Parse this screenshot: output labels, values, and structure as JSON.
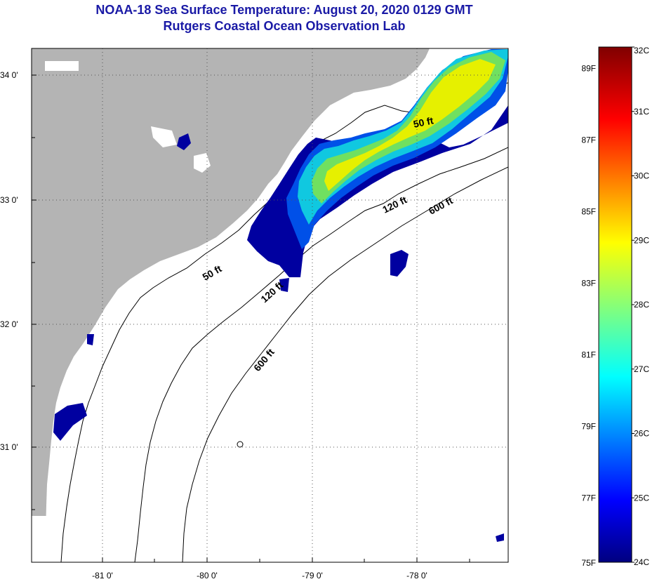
{
  "title": {
    "line1": "NOAA-18 Sea Surface Temperature:  August 20, 2020 0129 GMT",
    "line2": "Rutgers Coastal Ocean Observation Lab"
  },
  "map": {
    "lat_labels": [
      "34 0'",
      "33 0'",
      "32 0'",
      "31 0'"
    ],
    "lon_labels": [
      "-81 0'",
      "-80 0'",
      "-79 0'",
      "-78 0'"
    ],
    "contour_labels": [
      "50 ft",
      "120 ft",
      "600 ft",
      "50 ft",
      "120 ft",
      "600 ft"
    ],
    "colors": {
      "land": "#b4b4b4",
      "cloud": "#ffffff",
      "dark_blue": "#0000a0",
      "blue": "#0040e0",
      "cyan": "#00c8e8",
      "green": "#60e070",
      "yellow": "#e8f000"
    }
  },
  "colorbar": {
    "celsius_labels": [
      "32C",
      "31C",
      "30C",
      "29C",
      "28C",
      "27C",
      "26C",
      "25C",
      "24C"
    ],
    "fahrenheit_labels": [
      "89F",
      "87F",
      "85F",
      "83F",
      "81F",
      "79F",
      "77F",
      "75F"
    ],
    "celsius_values": [
      32,
      31,
      30,
      29,
      28,
      27,
      26,
      25,
      24
    ],
    "fahrenheit_values": [
      89,
      87,
      85,
      83,
      81,
      79,
      77,
      75
    ],
    "range_c": [
      24,
      32
    ],
    "palette": "jet"
  }
}
